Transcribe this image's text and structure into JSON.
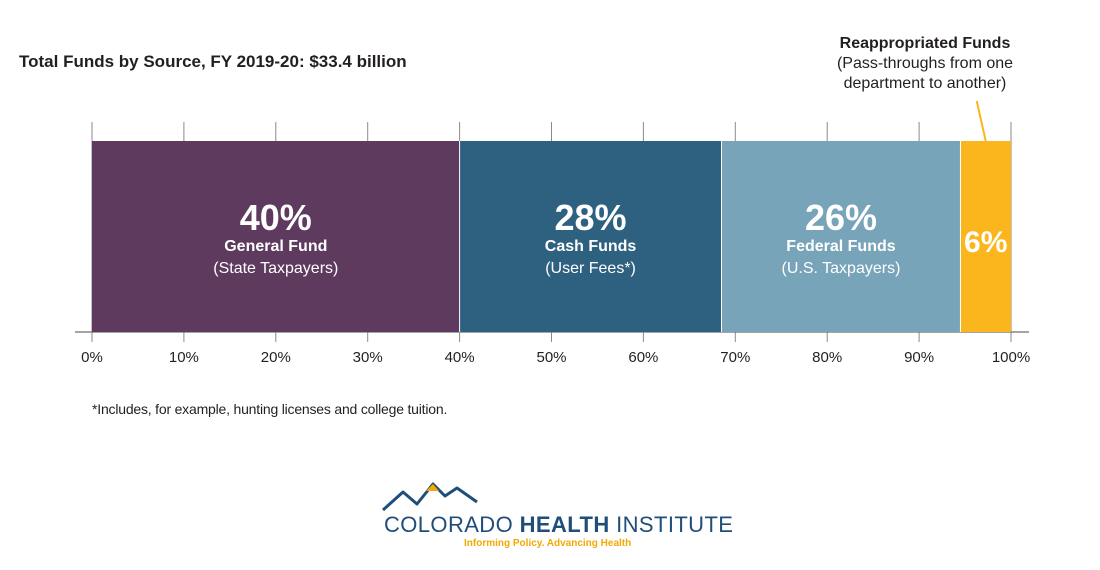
{
  "title": "Total Funds by Source, FY 2019-20: $33.4 billion",
  "chart_data": {
    "type": "bar",
    "orientation": "horizontal-stacked",
    "xlim": [
      0,
      100
    ],
    "xticks": [
      "0%",
      "10%",
      "20%",
      "30%",
      "40%",
      "50%",
      "60%",
      "70%",
      "80%",
      "90%",
      "100%"
    ],
    "segments": [
      {
        "percent_label": "40%",
        "name": "General Fund",
        "sub": "(State Taxpayers)",
        "start": 0,
        "end": 40,
        "color": "#5e3a5e"
      },
      {
        "percent_label": "28%",
        "name": "Cash Funds",
        "sub": "(User Fees*)",
        "start": 40,
        "end": 68.5,
        "color": "#2e6080"
      },
      {
        "percent_label": "26%",
        "name": "Federal Funds",
        "sub": "(U.S. Taxpayers)",
        "start": 68.5,
        "end": 94.5,
        "color": "#78a4b9"
      },
      {
        "percent_label": "6%",
        "name": "",
        "sub": "",
        "start": 94.5,
        "end": 100,
        "color": "#fbb61d"
      }
    ],
    "annotation": {
      "title": "Reappropriated Funds",
      "lines": [
        "(Pass-throughs from one",
        "department to another)"
      ],
      "line_color": "#fbb61d"
    }
  },
  "footnote": "*Includes, for example, hunting licenses and college tuition.",
  "logo": {
    "name_regular": "COLORADO ",
    "name_bold": "HEALTH",
    "name_end": " INSTITUTE",
    "tagline": "Informing Policy. Advancing Health",
    "colors": {
      "navy": "#1f4e79",
      "gold": "#f2a900"
    }
  }
}
